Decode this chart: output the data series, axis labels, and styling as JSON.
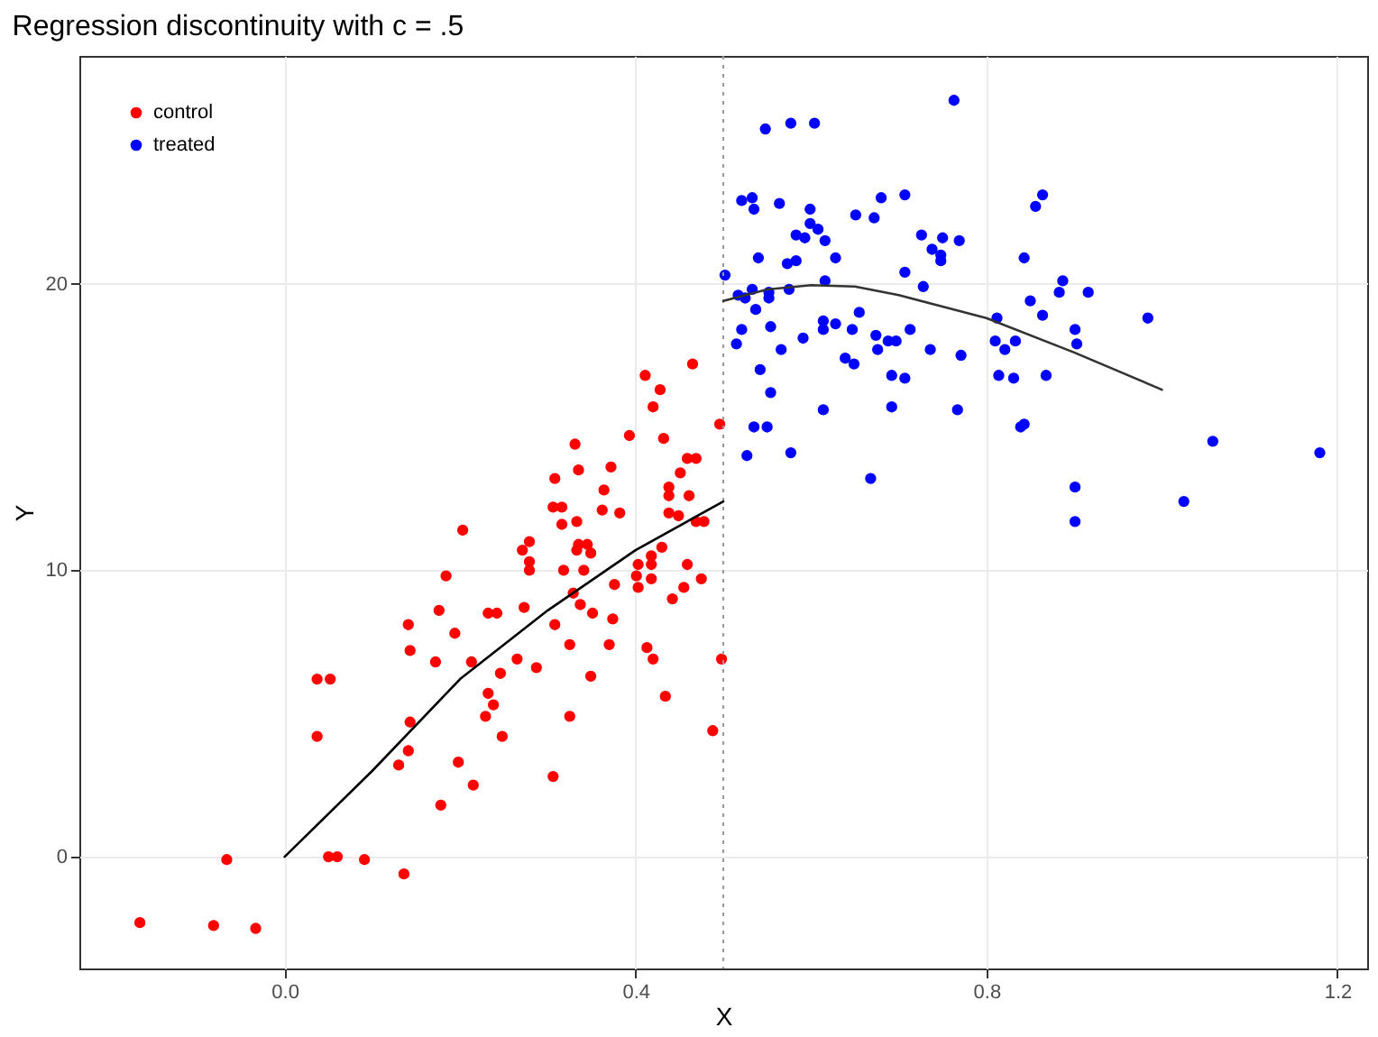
{
  "chart_data": {
    "type": "scatter",
    "title": "Regression discontinuity with c = .5",
    "xlabel": "X",
    "ylabel": "Y",
    "xlim": [
      -0.234,
      1.234
    ],
    "ylim": [
      -3.9,
      27.95
    ],
    "xticks": [
      {
        "value": 0,
        "label": "0.0"
      },
      0.4,
      0.8,
      1.2
    ],
    "yticks": [
      0,
      10,
      20
    ],
    "grid": true,
    "legend": "top left",
    "marker": "circle",
    "ref_lines": [
      {
        "axis": "x",
        "value": 0.5,
        "color": "#999999",
        "line_style": "dotted"
      }
    ],
    "series": [
      {
        "name": "control",
        "color": "#ff0000",
        "x": [
          -0.165,
          -0.081,
          -0.033,
          -0.066,
          0.037,
          0.052,
          0.037,
          0.05,
          0.06,
          0.091,
          0.136,
          0.141,
          0.143,
          0.143,
          0.141,
          0.13,
          0.172,
          0.176,
          0.178,
          0.184,
          0.194,
          0.198,
          0.203,
          0.215,
          0.213,
          0.232,
          0.242,
          0.232,
          0.238,
          0.229,
          0.246,
          0.248,
          0.265,
          0.271,
          0.273,
          0.279,
          0.279,
          0.279,
          0.287,
          0.306,
          0.308,
          0.308,
          0.306,
          0.316,
          0.316,
          0.318,
          0.325,
          0.325,
          0.329,
          0.331,
          0.333,
          0.333,
          0.335,
          0.335,
          0.337,
          0.341,
          0.345,
          0.349,
          0.349,
          0.351,
          0.362,
          0.364,
          0.37,
          0.372,
          0.374,
          0.376,
          0.382,
          0.393,
          0.401,
          0.403,
          0.403,
          0.411,
          0.413,
          0.418,
          0.418,
          0.418,
          0.42,
          0.42,
          0.428,
          0.43,
          0.432,
          0.434,
          0.438,
          0.438,
          0.438,
          0.442,
          0.449,
          0.451,
          0.455,
          0.459,
          0.459,
          0.461,
          0.465,
          0.469,
          0.469,
          0.475,
          0.478,
          0.488,
          0.496,
          0.498
        ],
        "values": [
          -2.3,
          -2.4,
          -2.5,
          -0.1,
          6.2,
          6.2,
          4.2,
          0,
          0,
          -0.1,
          -0.6,
          8.1,
          7.2,
          4.7,
          3.7,
          3.2,
          6.8,
          8.6,
          1.8,
          9.8,
          7.8,
          3.3,
          11.4,
          2.5,
          6.8,
          8.5,
          8.5,
          5.7,
          5.3,
          4.9,
          6.4,
          4.2,
          6.9,
          10.7,
          8.7,
          11,
          10.3,
          10,
          6.6,
          12.2,
          13.2,
          8.1,
          2.8,
          12.2,
          11.6,
          10,
          7.4,
          4.9,
          9.2,
          14.4,
          11.7,
          10.7,
          13.5,
          10.9,
          8.8,
          10,
          10.9,
          10.6,
          6.3,
          8.5,
          12.1,
          12.8,
          7.4,
          13.6,
          8.3,
          9.5,
          12,
          14.7,
          9.8,
          10.2,
          9.4,
          16.8,
          7.3,
          10.5,
          10.2,
          9.7,
          15.7,
          6.9,
          16.3,
          10.8,
          14.6,
          5.6,
          12.9,
          12.6,
          12,
          9,
          11.9,
          13.4,
          9.4,
          13.9,
          10.2,
          12.6,
          17.2,
          13.9,
          11.7,
          9.7,
          11.7,
          4.4,
          15.1,
          6.9
        ]
      },
      {
        "name": "treated",
        "color": "#0000ff",
        "x": [
          0.763,
          0.548,
          0.577,
          0.604,
          0.521,
          0.533,
          0.535,
          0.564,
          0.599,
          0.599,
          0.608,
          0.583,
          0.593,
          0.616,
          0.651,
          0.672,
          0.68,
          0.707,
          0.726,
          0.738,
          0.75,
          0.748,
          0.748,
          0.769,
          0.54,
          0.583,
          0.573,
          0.628,
          0.616,
          0.707,
          0.502,
          0.728,
          0.517,
          0.525,
          0.533,
          0.552,
          0.552,
          0.575,
          0.537,
          0.521,
          0.515,
          0.554,
          0.566,
          0.591,
          0.614,
          0.614,
          0.628,
          0.655,
          0.647,
          0.674,
          0.676,
          0.688,
          0.697,
          0.713,
          0.736,
          0.771,
          0.639,
          0.649,
          0.692,
          0.707,
          0.542,
          0.554,
          0.614,
          0.692,
          0.767,
          0.535,
          0.55,
          0.527,
          0.577,
          0.668,
          0.843,
          0.856,
          0.864,
          0.812,
          0.81,
          0.821,
          0.833,
          0.85,
          0.814,
          0.831,
          0.839,
          0.843,
          0.864,
          0.868,
          0.887,
          0.883,
          0.916,
          0.984,
          0.901,
          0.903,
          1.058,
          1.18,
          0.901,
          1.025,
          0.901
        ],
        "values": [
          26.4,
          25.4,
          25.6,
          25.6,
          22.9,
          23,
          22.6,
          22.8,
          22.6,
          22.1,
          21.9,
          21.7,
          21.6,
          21.5,
          22.4,
          22.3,
          23,
          23.1,
          21.7,
          21.2,
          21.6,
          21,
          20.8,
          21.5,
          20.9,
          20.8,
          20.7,
          20.9,
          20.1,
          20.4,
          20.3,
          19.9,
          19.6,
          19.5,
          19.8,
          19.7,
          19.5,
          19.8,
          19.1,
          18.4,
          17.9,
          18.5,
          17.7,
          18.1,
          18.7,
          18.4,
          18.6,
          19,
          18.4,
          18.2,
          17.7,
          18,
          18,
          18.4,
          17.7,
          17.5,
          17.4,
          17.2,
          16.8,
          16.7,
          17,
          16.2,
          15.6,
          15.7,
          15.6,
          15,
          15,
          14,
          14.1,
          13.2,
          20.9,
          22.7,
          23.1,
          18.8,
          18,
          17.7,
          18,
          19.4,
          16.8,
          16.7,
          15,
          15.1,
          18.9,
          16.8,
          20.1,
          19.7,
          19.7,
          18.8,
          18.4,
          17.9,
          14.5,
          14.1,
          12.9,
          12.4,
          11.7
        ]
      },
      {
        "type": "line",
        "marker": "none",
        "color": "#000000",
        "x": [
          0,
          0.1,
          0.2,
          0.3,
          0.4,
          0.5
        ],
        "values": [
          0,
          3,
          6.2,
          8.6,
          10.7,
          12.4
        ]
      },
      {
        "type": "line",
        "marker": "none",
        "color": "#333333",
        "x": [
          0.5,
          0.55,
          0.6,
          0.65,
          0.7,
          0.75,
          0.8,
          0.9,
          1
        ],
        "values": [
          19.4,
          19.8,
          19.95,
          19.9,
          19.6,
          19.2,
          18.8,
          17.6,
          16.3
        ]
      }
    ]
  }
}
